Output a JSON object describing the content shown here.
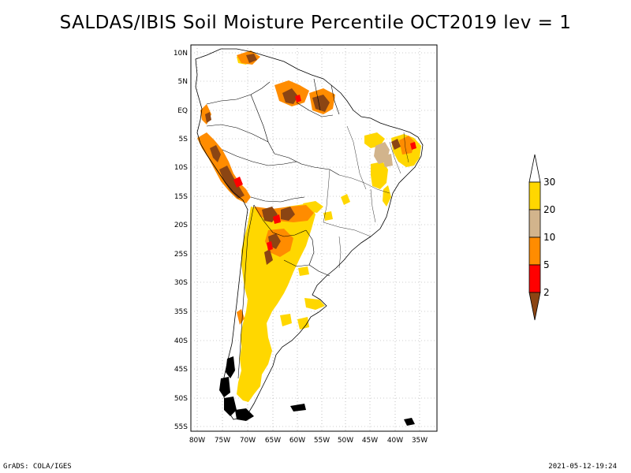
{
  "title": "SALDAS/IBIS Soil Moisture Percentile OCT2019 lev = 1",
  "map": {
    "region": "South America",
    "lat_labels": [
      "10N",
      "5N",
      "EQ",
      "5S",
      "10S",
      "15S",
      "20S",
      "25S",
      "30S",
      "35S",
      "40S",
      "45S",
      "50S",
      "55S"
    ],
    "lon_labels": [
      "80W",
      "75W",
      "70W",
      "65W",
      "60W",
      "55W",
      "50W",
      "45W",
      "40W",
      "35W"
    ],
    "lat_range": [
      -56,
      12
    ],
    "lon_range": [
      -81,
      -33
    ],
    "grid": "dotted"
  },
  "legend": {
    "labels": [
      "30",
      "20",
      "10",
      "5",
      "2"
    ],
    "colors": {
      "above_30": "#ffffff",
      "20_30": "#ffd700",
      "10_20": "#d2b48c",
      "5_10": "#ff8c00",
      "2_5": "#ff0000",
      "below_2": "#8b4513"
    }
  },
  "footer": {
    "left": "GrADS: COLA/IGES",
    "right": "2021-05-12-19:24"
  }
}
